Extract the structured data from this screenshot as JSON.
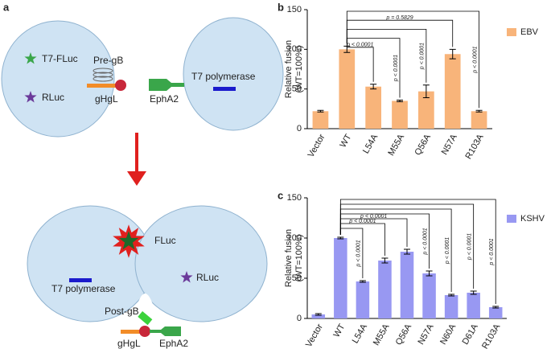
{
  "diagram": {
    "label": "a",
    "top": {
      "reporter": "T7-FLuc",
      "control": "RLuc",
      "glycoprotein": "Pre-gB",
      "complex": "gHgL",
      "receptor": "EphA2",
      "polymerase": "T7 polymerase"
    },
    "bottom": {
      "reporter": "FLuc",
      "polymerase": "T7 polymerase",
      "control": "RLuc",
      "glycoprotein": "Post-gB",
      "complex": "gHgL",
      "receptor": "EphA2"
    }
  },
  "chart_data": [
    {
      "type": "bar",
      "label": "b",
      "ylabel": [
        "Relative fusion",
        "(WT=100%)"
      ],
      "categories": [
        "Vector",
        "WT",
        "L54A",
        "M55A",
        "Q56A",
        "N57A",
        "R103A"
      ],
      "series": [
        {
          "name": "EBV",
          "color": "#f8b47a",
          "values": [
            22,
            100,
            53,
            35,
            47,
            94,
            22
          ],
          "errors": [
            1,
            4,
            3,
            1,
            8,
            6,
            1
          ]
        }
      ],
      "annotations": [
        null,
        null,
        "p < 0.0001",
        "p < 0.0001",
        "p < 0.0001",
        "p = 0.5829",
        "p < 0.0001"
      ],
      "ylim": [
        0,
        150
      ],
      "yticks": [
        0,
        50,
        100,
        150
      ]
    },
    {
      "type": "bar",
      "label": "c",
      "ylabel": [
        "Relative fusion",
        "(WT=100%)"
      ],
      "categories": [
        "Vector",
        "WT",
        "L54A",
        "M55A",
        "Q56A",
        "N57A",
        "N60A",
        "D61A",
        "R103A"
      ],
      "series": [
        {
          "name": "KSHV",
          "color": "#9898f2",
          "values": [
            5,
            100,
            46,
            72,
            83,
            56,
            29,
            32,
            14
          ],
          "errors": [
            1,
            1,
            1,
            3,
            3,
            3,
            1,
            2,
            1
          ]
        }
      ],
      "annotations": [
        null,
        null,
        "p < 0.0001",
        "p < 0.0001",
        "p < 0.0001",
        "p < 0.0001",
        "p < 0.0001",
        "p < 0.0001",
        "p < 0.0001"
      ],
      "ylim": [
        0,
        150
      ],
      "yticks": [
        0,
        50,
        100,
        150
      ]
    }
  ]
}
